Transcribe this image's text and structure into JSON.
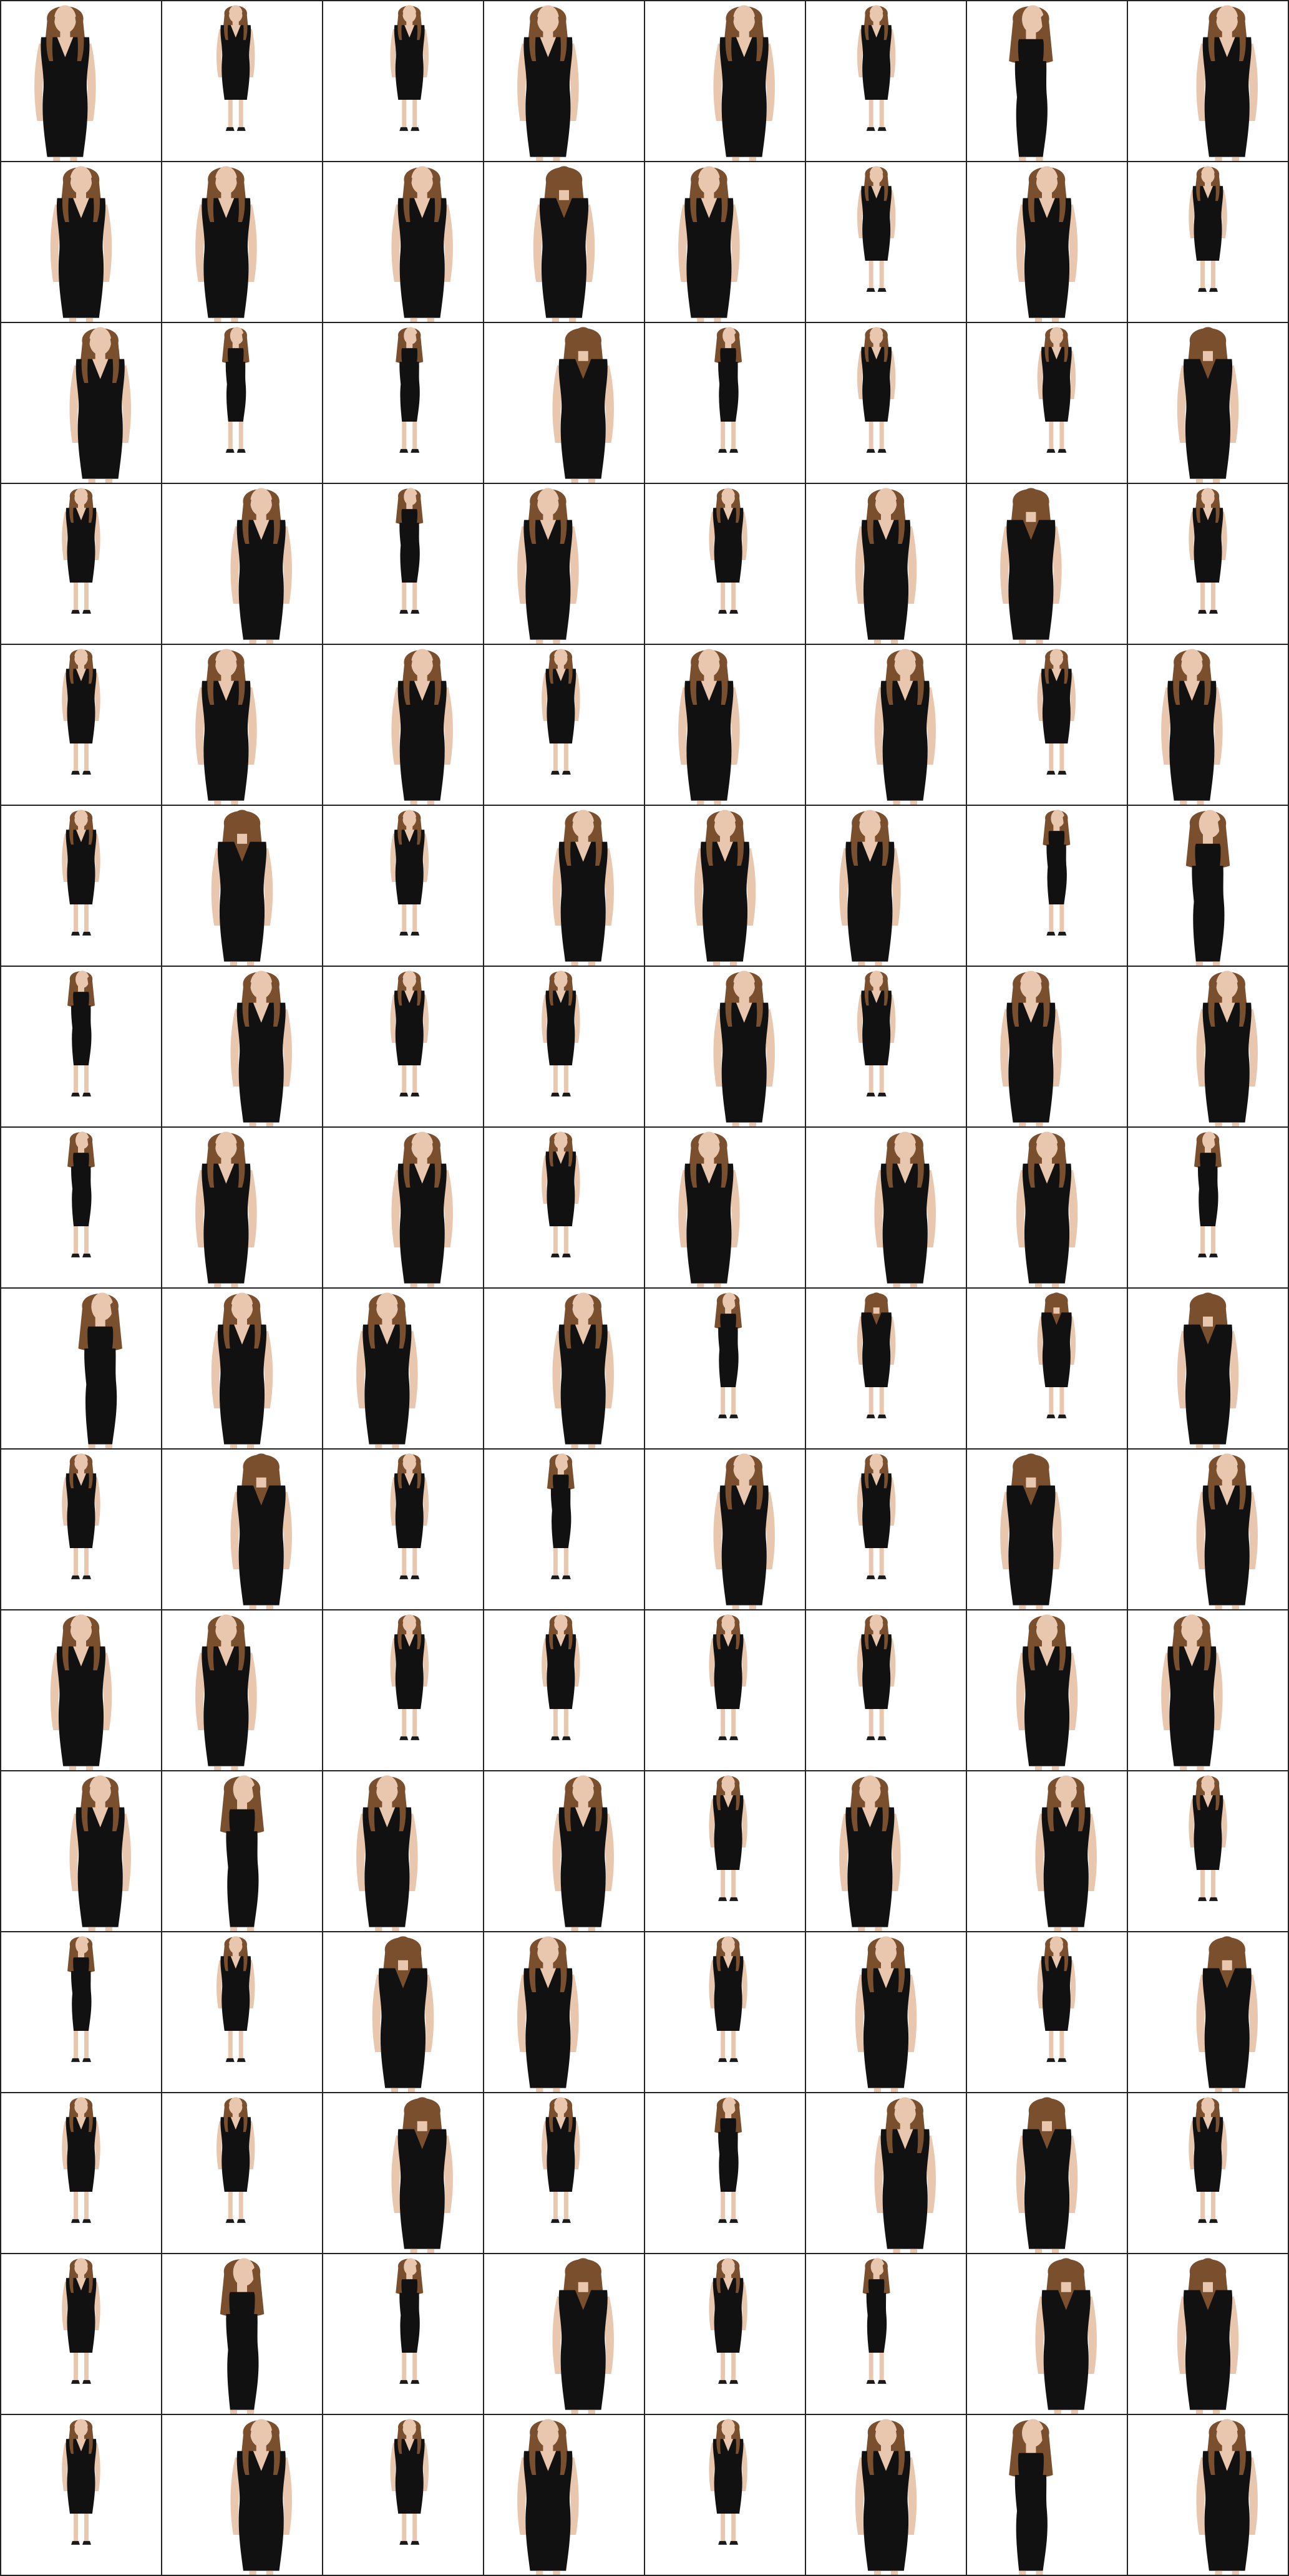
{
  "gallery": {
    "columns": 8,
    "rows": 16,
    "background_color": "#ffffff",
    "grid_line_color": "#222222",
    "dress_color": "#111111",
    "skin_color": "#e9c7ae",
    "hair_color": "#7a4f2d",
    "shoe_color": "#1a1a1a",
    "cells": [
      {
        "view": "front",
        "shot": "upper"
      },
      {
        "view": "front",
        "shot": "full"
      },
      {
        "view": "front",
        "shot": "full"
      },
      {
        "view": "front",
        "shot": "upper"
      },
      {
        "view": "front",
        "shot": "upper"
      },
      {
        "view": "front",
        "shot": "full"
      },
      {
        "view": "side",
        "shot": "upper"
      },
      {
        "view": "front",
        "shot": "upper"
      },
      {
        "view": "front",
        "shot": "upper"
      },
      {
        "view": "front",
        "shot": "upper"
      },
      {
        "view": "front",
        "shot": "upper"
      },
      {
        "view": "back",
        "shot": "upper"
      },
      {
        "view": "three-quarter",
        "shot": "upper"
      },
      {
        "view": "front",
        "shot": "full"
      },
      {
        "view": "front",
        "shot": "upper"
      },
      {
        "view": "front",
        "shot": "full"
      },
      {
        "view": "front",
        "shot": "upper"
      },
      {
        "view": "side",
        "shot": "full"
      },
      {
        "view": "side",
        "shot": "full"
      },
      {
        "view": "back",
        "shot": "upper"
      },
      {
        "view": "side",
        "shot": "full"
      },
      {
        "view": "front",
        "shot": "full"
      },
      {
        "view": "front",
        "shot": "full"
      },
      {
        "view": "back",
        "shot": "upper"
      },
      {
        "view": "front",
        "shot": "full"
      },
      {
        "view": "front",
        "shot": "upper"
      },
      {
        "view": "side",
        "shot": "full"
      },
      {
        "view": "front",
        "shot": "upper"
      },
      {
        "view": "front",
        "shot": "full"
      },
      {
        "view": "front",
        "shot": "upper"
      },
      {
        "view": "back",
        "shot": "upper"
      },
      {
        "view": "front",
        "shot": "full"
      },
      {
        "view": "front",
        "shot": "full"
      },
      {
        "view": "front",
        "shot": "upper"
      },
      {
        "view": "front",
        "shot": "upper"
      },
      {
        "view": "front",
        "shot": "full"
      },
      {
        "view": "front",
        "shot": "upper"
      },
      {
        "view": "front",
        "shot": "upper"
      },
      {
        "view": "front",
        "shot": "full"
      },
      {
        "view": "front",
        "shot": "upper"
      },
      {
        "view": "front",
        "shot": "full"
      },
      {
        "view": "back",
        "shot": "upper"
      },
      {
        "view": "front",
        "shot": "full"
      },
      {
        "view": "front",
        "shot": "upper"
      },
      {
        "view": "three-quarter",
        "shot": "upper"
      },
      {
        "view": "front",
        "shot": "upper"
      },
      {
        "view": "side",
        "shot": "full"
      },
      {
        "view": "side",
        "shot": "upper"
      },
      {
        "view": "side",
        "shot": "full"
      },
      {
        "view": "front",
        "shot": "upper"
      },
      {
        "view": "front",
        "shot": "full"
      },
      {
        "view": "front",
        "shot": "full"
      },
      {
        "view": "front",
        "shot": "upper"
      },
      {
        "view": "front",
        "shot": "full"
      },
      {
        "view": "front",
        "shot": "upper"
      },
      {
        "view": "front",
        "shot": "upper"
      },
      {
        "view": "side",
        "shot": "full"
      },
      {
        "view": "front",
        "shot": "upper"
      },
      {
        "view": "front",
        "shot": "upper"
      },
      {
        "view": "front",
        "shot": "full"
      },
      {
        "view": "front",
        "shot": "upper"
      },
      {
        "view": "front",
        "shot": "upper"
      },
      {
        "view": "front",
        "shot": "upper"
      },
      {
        "view": "side",
        "shot": "full"
      },
      {
        "view": "side",
        "shot": "upper"
      },
      {
        "view": "front",
        "shot": "upper"
      },
      {
        "view": "front",
        "shot": "upper"
      },
      {
        "view": "front",
        "shot": "upper"
      },
      {
        "view": "side",
        "shot": "full"
      },
      {
        "view": "back",
        "shot": "full"
      },
      {
        "view": "back",
        "shot": "full"
      },
      {
        "view": "back",
        "shot": "upper"
      },
      {
        "view": "front",
        "shot": "full"
      },
      {
        "view": "back",
        "shot": "upper"
      },
      {
        "view": "front",
        "shot": "full"
      },
      {
        "view": "side",
        "shot": "full"
      },
      {
        "view": "front",
        "shot": "upper"
      },
      {
        "view": "front",
        "shot": "full"
      },
      {
        "view": "back",
        "shot": "upper"
      },
      {
        "view": "front",
        "shot": "upper"
      },
      {
        "view": "front",
        "shot": "upper"
      },
      {
        "view": "front",
        "shot": "upper"
      },
      {
        "view": "front",
        "shot": "full"
      },
      {
        "view": "front",
        "shot": "full"
      },
      {
        "view": "front",
        "shot": "full"
      },
      {
        "view": "front",
        "shot": "full"
      },
      {
        "view": "front",
        "shot": "upper"
      },
      {
        "view": "front",
        "shot": "upper"
      },
      {
        "view": "front",
        "shot": "upper"
      },
      {
        "view": "side",
        "shot": "upper"
      },
      {
        "view": "front",
        "shot": "upper"
      },
      {
        "view": "front",
        "shot": "upper"
      },
      {
        "view": "front",
        "shot": "full"
      },
      {
        "view": "front",
        "shot": "upper"
      },
      {
        "view": "front",
        "shot": "upper"
      },
      {
        "view": "front",
        "shot": "full"
      },
      {
        "view": "side",
        "shot": "full"
      },
      {
        "view": "front",
        "shot": "full"
      },
      {
        "view": "back",
        "shot": "upper"
      },
      {
        "view": "front",
        "shot": "upper"
      },
      {
        "view": "front",
        "shot": "full"
      },
      {
        "view": "front",
        "shot": "upper"
      },
      {
        "view": "front",
        "shot": "full"
      },
      {
        "view": "back",
        "shot": "upper"
      },
      {
        "view": "front",
        "shot": "full"
      },
      {
        "view": "front",
        "shot": "full"
      },
      {
        "view": "back",
        "shot": "upper"
      },
      {
        "view": "front",
        "shot": "full"
      },
      {
        "view": "side",
        "shot": "full"
      },
      {
        "view": "front",
        "shot": "upper"
      },
      {
        "view": "back",
        "shot": "upper"
      },
      {
        "view": "front",
        "shot": "full"
      },
      {
        "view": "front",
        "shot": "full"
      },
      {
        "view": "side",
        "shot": "upper"
      },
      {
        "view": "side",
        "shot": "full"
      },
      {
        "view": "back",
        "shot": "upper"
      },
      {
        "view": "front",
        "shot": "full"
      },
      {
        "view": "side",
        "shot": "full"
      },
      {
        "view": "back",
        "shot": "upper"
      },
      {
        "view": "back",
        "shot": "upper"
      },
      {
        "view": "front",
        "shot": "full"
      },
      {
        "view": "front",
        "shot": "upper"
      },
      {
        "view": "front",
        "shot": "full"
      },
      {
        "view": "front",
        "shot": "upper"
      },
      {
        "view": "front",
        "shot": "full"
      },
      {
        "view": "front",
        "shot": "upper"
      },
      {
        "view": "side",
        "shot": "upper"
      },
      {
        "view": "front",
        "shot": "upper"
      }
    ]
  }
}
